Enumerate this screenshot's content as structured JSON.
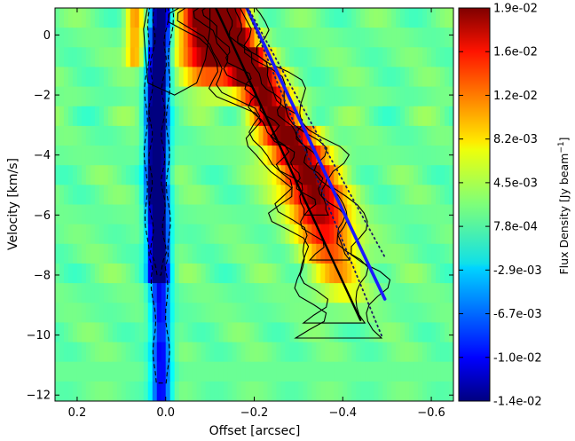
{
  "chart_data": {
    "type": "heatmap",
    "title": "",
    "xlabel": "Offset [arcsec]",
    "ylabel": "Velocity [km/s]",
    "colorbar_label": "Flux Density [Jy beam",
    "colorbar_label_sup": "−1",
    "colorbar_label_tail": "]",
    "colormap": "jet",
    "xlim": [
      0.25,
      -0.65
    ],
    "ylim": [
      -12.2,
      0.9
    ],
    "x_ticks": [
      {
        "value": 0.2,
        "label": "0.2"
      },
      {
        "value": 0.0,
        "label": "0.0"
      },
      {
        "value": -0.2,
        "label": "−0.2"
      },
      {
        "value": -0.4,
        "label": "−0.4"
      },
      {
        "value": -0.6,
        "label": "−0.6"
      }
    ],
    "y_ticks": [
      {
        "value": 0,
        "label": "0"
      },
      {
        "value": -2,
        "label": "−2"
      },
      {
        "value": -4,
        "label": "−4"
      },
      {
        "value": -6,
        "label": "−6"
      },
      {
        "value": -8,
        "label": "−8"
      },
      {
        "value": -10,
        "label": "−10"
      },
      {
        "value": -12,
        "label": "−12"
      }
    ],
    "colorbar_ticks": [
      "1.9e-02",
      "1.6e-02",
      "1.2e-02",
      "8.2e-03",
      "4.5e-03",
      "7.8e-04",
      "-2.9e-03",
      "-6.7e-03",
      "-1.0e-02",
      "-1.4e-02"
    ],
    "colorbar_range": [
      -0.014,
      0.019
    ],
    "emission_ridge": {
      "offset": [
        -0.12,
        -0.18,
        -0.24,
        -0.3,
        -0.34,
        -0.37,
        -0.4
      ],
      "velocity": [
        0.4,
        -1,
        -2.5,
        -4,
        -5.5,
        -7,
        -8.5
      ]
    },
    "absorption_center": {
      "offset": [
        0.01,
        0.02,
        0.02,
        0.015,
        0.01
      ],
      "velocity": [
        0.9,
        -2,
        -5,
        -8,
        -10
      ]
    },
    "lines": [
      {
        "name": "",
        "style": "solid",
        "color": "#000000",
        "x": [
          -0.11,
          -0.44
        ],
        "y": [
          1.0,
          -9.5
        ]
      },
      {
        "name": "",
        "style": "solid",
        "color": "#1a1aff",
        "x": [
          -0.18,
          -0.495
        ],
        "y": [
          1.0,
          -8.8
        ]
      },
      {
        "name": "",
        "style": "dotted",
        "color": "#1a1a66",
        "x": [
          -0.19,
          -0.495
        ],
        "y": [
          0.8,
          -7.4
        ]
      },
      {
        "name": "",
        "style": "dotted",
        "color": "#1a1a66",
        "x": [
          -0.18,
          -0.49
        ],
        "y": [
          1.0,
          -10.1
        ]
      }
    ],
    "grid": false
  }
}
